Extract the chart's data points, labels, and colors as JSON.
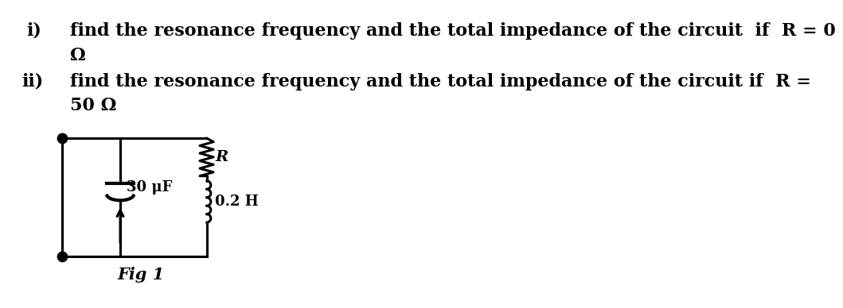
{
  "text_i": "find the resonance frequency and the total impedance of the circuit  if  R = 0",
  "text_i_cont": "Ω",
  "text_ii": "find the resonance frequency and the total impedance of the circuit if  R =",
  "text_ii_cont": "50 Ω",
  "fig_label": "Fig 1",
  "label_R": "R",
  "label_C": "30 μF",
  "label_L": "0.2 H",
  "bg_color": "#ffffff",
  "line_color": "#000000",
  "font_size_text": 16,
  "font_size_fig": 15
}
